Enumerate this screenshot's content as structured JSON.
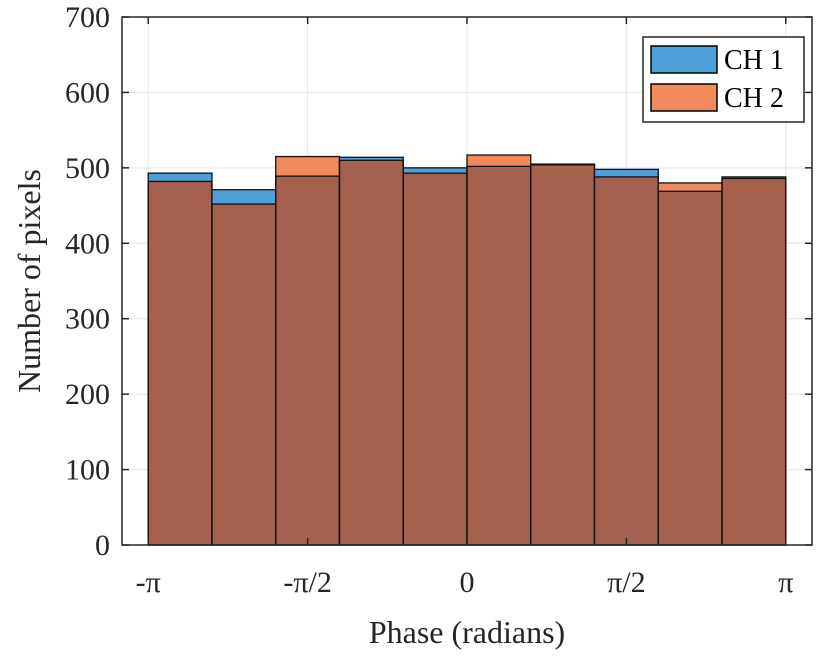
{
  "chart_data": {
    "type": "bar",
    "subtype": "overlaid-histogram",
    "title": "",
    "xlabel": "Phase (radians)",
    "ylabel": "Number of pixels",
    "xlim": [
      -3.4,
      3.4
    ],
    "ylim": [
      0,
      700
    ],
    "grid": true,
    "legend_position": "top-right",
    "x_ticks": [
      {
        "value": -3.14159,
        "label": "-π"
      },
      {
        "value": -1.5708,
        "label": "-π/2"
      },
      {
        "value": 0,
        "label": "0"
      },
      {
        "value": 1.5708,
        "label": "π/2"
      },
      {
        "value": 3.14159,
        "label": "π"
      }
    ],
    "y_ticks": [
      {
        "value": 0,
        "label": "0"
      },
      {
        "value": 100,
        "label": "100"
      },
      {
        "value": 200,
        "label": "200"
      },
      {
        "value": 300,
        "label": "300"
      },
      {
        "value": 400,
        "label": "400"
      },
      {
        "value": 500,
        "label": "500"
      },
      {
        "value": 600,
        "label": "600"
      },
      {
        "value": 700,
        "label": "700"
      }
    ],
    "bin_edges": [
      -3.14159,
      -2.51327,
      -1.88496,
      -1.25664,
      -0.62832,
      0,
      0.62832,
      1.25664,
      1.88496,
      2.51327,
      3.14159
    ],
    "series": [
      {
        "name": "CH 1",
        "color": "#4f9fd9",
        "values": [
          493,
          471,
          489,
          514,
          500,
          502,
          504,
          498,
          469,
          488
        ]
      },
      {
        "name": "CH 2",
        "color": "#f08a5d",
        "values": [
          482,
          452,
          515,
          510,
          493,
          517,
          505,
          488,
          480,
          486
        ]
      }
    ],
    "overlap_color": "#a5604d"
  }
}
